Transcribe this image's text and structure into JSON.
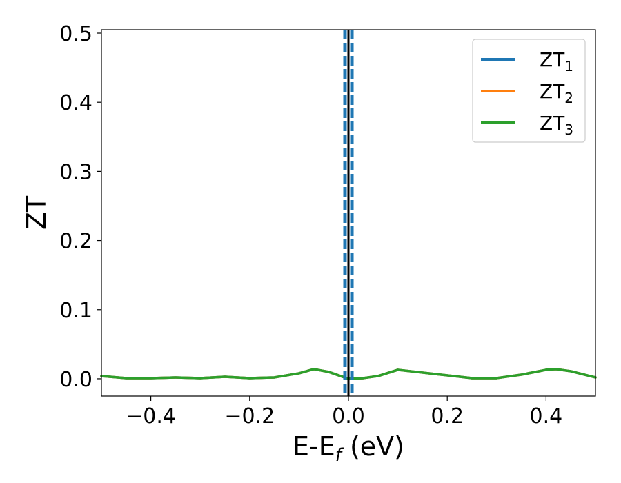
{
  "chart_data": {
    "type": "line",
    "title": "",
    "xlabel": "E-E",
    "xlabel_sub": "f",
    "xlabel_unit": " (eV)",
    "ylabel": "ZT",
    "xlim": [
      -0.5,
      0.5
    ],
    "ylim": [
      -0.025,
      0.505
    ],
    "xticks": [
      -0.4,
      -0.2,
      0.0,
      0.2,
      0.4
    ],
    "xtick_labels": [
      "−0.4",
      "−0.2",
      "0.0",
      "0.2",
      "0.4"
    ],
    "yticks": [
      0.0,
      0.1,
      0.2,
      0.3,
      0.4,
      0.5
    ],
    "ytick_labels": [
      "0.0",
      "0.1",
      "0.2",
      "0.3",
      "0.4",
      "0.5"
    ],
    "grid": false,
    "legend_position": "top-right",
    "series": [
      {
        "name": "ZT",
        "name_sub": "1",
        "color": "#1f77b4",
        "x": [
          -0.5,
          -0.45,
          -0.4,
          -0.35,
          -0.3,
          -0.25,
          -0.2,
          -0.15,
          -0.1,
          -0.07,
          -0.04,
          0.0,
          0.03,
          0.06,
          0.1,
          0.15,
          0.2,
          0.25,
          0.3,
          0.35,
          0.4,
          0.42,
          0.45,
          0.5
        ],
        "y": [
          0.004,
          0.001,
          0.001,
          0.002,
          0.001,
          0.003,
          0.001,
          0.002,
          0.008,
          0.014,
          0.01,
          0.0,
          0.001,
          0.004,
          0.013,
          0.009,
          0.005,
          0.001,
          0.001,
          0.006,
          0.013,
          0.014,
          0.011,
          0.002
        ]
      },
      {
        "name": "ZT",
        "name_sub": "2",
        "color": "#ff7f0e",
        "x": [
          -0.5,
          -0.45,
          -0.4,
          -0.35,
          -0.3,
          -0.25,
          -0.2,
          -0.15,
          -0.1,
          -0.07,
          -0.04,
          0.0,
          0.03,
          0.06,
          0.1,
          0.15,
          0.2,
          0.25,
          0.3,
          0.35,
          0.4,
          0.42,
          0.45,
          0.5
        ],
        "y": [
          0.004,
          0.001,
          0.001,
          0.002,
          0.001,
          0.003,
          0.001,
          0.002,
          0.008,
          0.014,
          0.01,
          0.0,
          0.001,
          0.004,
          0.013,
          0.009,
          0.005,
          0.001,
          0.001,
          0.006,
          0.013,
          0.014,
          0.011,
          0.002
        ]
      },
      {
        "name": "ZT",
        "name_sub": "3",
        "color": "#2ca02c",
        "x": [
          -0.5,
          -0.45,
          -0.4,
          -0.35,
          -0.3,
          -0.25,
          -0.2,
          -0.15,
          -0.1,
          -0.07,
          -0.04,
          0.0,
          0.03,
          0.06,
          0.1,
          0.15,
          0.2,
          0.25,
          0.3,
          0.35,
          0.4,
          0.42,
          0.45,
          0.5
        ],
        "y": [
          0.004,
          0.001,
          0.001,
          0.002,
          0.001,
          0.003,
          0.001,
          0.002,
          0.008,
          0.014,
          0.01,
          0.0,
          0.001,
          0.004,
          0.013,
          0.009,
          0.005,
          0.001,
          0.001,
          0.006,
          0.013,
          0.014,
          0.011,
          0.002
        ]
      }
    ],
    "vertical_lines": [
      {
        "x": 0.0,
        "color": "#000000",
        "style": "solid"
      },
      {
        "x": -0.007,
        "color": "#1f77b4",
        "style": "dashed"
      },
      {
        "x": 0.007,
        "color": "#1f77b4",
        "style": "dashed"
      }
    ]
  }
}
